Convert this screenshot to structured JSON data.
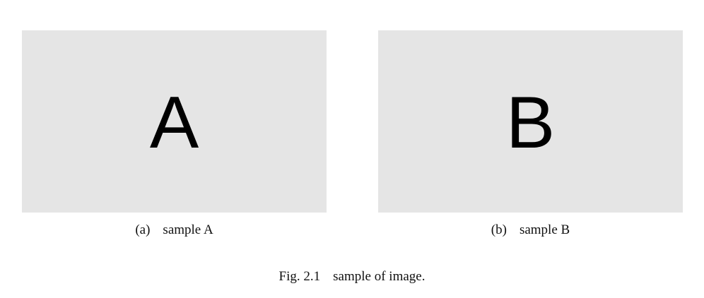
{
  "panels": [
    {
      "letter": "A",
      "label": "(a)",
      "caption": "sample A"
    },
    {
      "letter": "B",
      "label": "(b)",
      "caption": "sample B"
    }
  ],
  "figure": {
    "number": "Fig. 2.1",
    "caption": "sample of image."
  },
  "colors": {
    "panel_background": "#e5e5e5",
    "text": "#111111"
  }
}
